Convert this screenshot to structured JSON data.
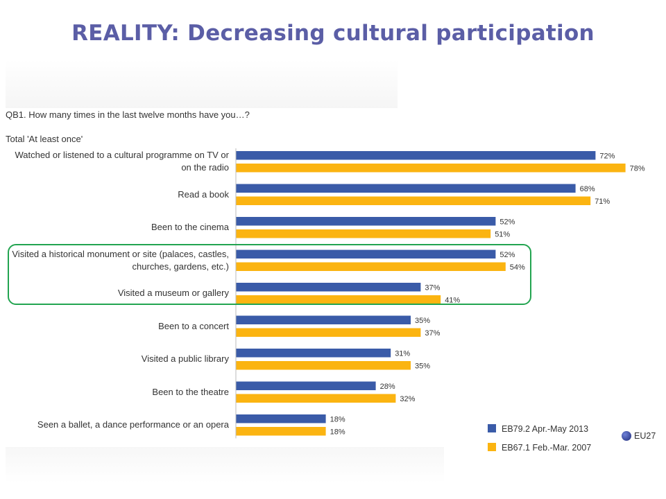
{
  "title": "REALITY: Decreasing cultural participation",
  "question": "QB1. How many times in the last twelve months have you…?",
  "subtitle": "Total 'At least once'",
  "eu_label": "EU27",
  "colors": {
    "series_2013": "#3a5ba8",
    "series_2007": "#fbb411",
    "highlight": "#22a450",
    "title": "#5b5ea6"
  },
  "chart_data": {
    "type": "bar",
    "orientation": "horizontal",
    "title": "QB1. How many times in the last twelve months have you…?",
    "subtitle": "Total 'At least once'",
    "categories": [
      "Watched or listened to a cultural programme on TV or on the radio",
      "Read a book",
      "Been to the cinema",
      "Visited a historical monument or site (palaces, castles, churches, gardens, etc.)",
      "Visited a museum or gallery",
      "Been to a concert",
      "Visited a public library",
      "Been to the theatre",
      "Seen a ballet, a dance performance or an opera"
    ],
    "category_lines": [
      [
        "Watched or listened to a cultural programme on TV or",
        "on the radio"
      ],
      [
        "Read a book"
      ],
      [
        "Been to the cinema"
      ],
      [
        "Visited a historical monument or site (palaces, castles,",
        "churches, gardens, etc.)"
      ],
      [
        "Visited a museum or gallery"
      ],
      [
        "Been to a concert"
      ],
      [
        "Visited a public library"
      ],
      [
        "Been to the theatre"
      ],
      [
        "Seen a ballet, a dance performance or an opera"
      ]
    ],
    "series": [
      {
        "name": "EB79.2 Apr.-May 2013",
        "color": "#3a5ba8",
        "values": [
          72,
          68,
          52,
          52,
          37,
          35,
          31,
          28,
          18
        ]
      },
      {
        "name": "EB67.1 Feb.-Mar. 2007",
        "color": "#fbb411",
        "values": [
          78,
          71,
          51,
          54,
          41,
          37,
          35,
          32,
          18
        ]
      }
    ],
    "value_suffix": "%",
    "xlim": [
      0,
      100
    ],
    "grid": false,
    "legend_position": "bottom-right",
    "highlighted_categories": [
      "Visited a historical monument or site (palaces, castles, churches, gardens, etc.)",
      "Visited a museum or gallery"
    ]
  }
}
